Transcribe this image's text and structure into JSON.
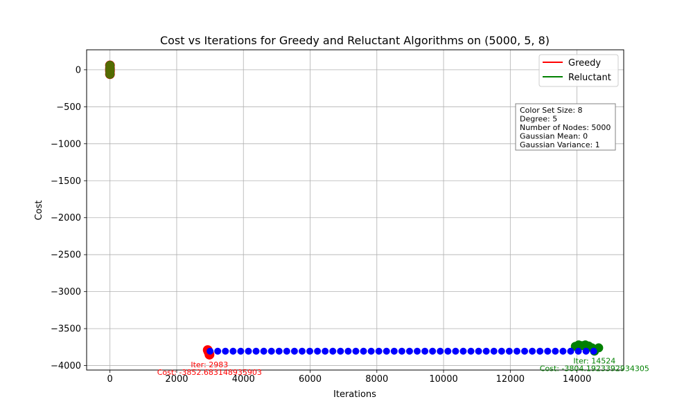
{
  "chart_data": {
    "type": "scatter",
    "title": "Cost vs Iterations for Greedy and Reluctant Algorithms on (5000, 5, 8)",
    "xlabel": "Iterations",
    "ylabel": "Cost",
    "xlim": [
      -700,
      15400
    ],
    "ylim": [
      -4060,
      270
    ],
    "grid": true,
    "x_ticks": [
      0,
      2000,
      4000,
      6000,
      8000,
      10000,
      12000,
      14000
    ],
    "x_tick_labels": [
      "0",
      "2000",
      "4000",
      "6000",
      "8000",
      "10000",
      "12000",
      "14000"
    ],
    "y_ticks": [
      0,
      -500,
      -1000,
      -1500,
      -2000,
      -2500,
      -3000,
      -3500,
      -4000
    ],
    "y_tick_labels": [
      "0",
      "−500",
      "−1000",
      "−1500",
      "−2000",
      "−2500",
      "−3000",
      "−3500",
      "−4000"
    ],
    "legend": {
      "placement": "top-right",
      "entries": [
        {
          "name": "Greedy",
          "color": "#ff0000"
        },
        {
          "name": "Reluctant",
          "color": "#008000"
        }
      ]
    },
    "info_box": [
      "Color Set Size: 8",
      "Degree: 5",
      "Number of Nodes: 5000",
      "Gaussian Mean: 0",
      "Gaussian Variance: 1"
    ],
    "series": [
      {
        "name": "Greedy",
        "color": "#ff0000",
        "marker": "circle",
        "x": [
          0,
          0,
          0,
          0,
          0,
          2930,
          2950,
          2970,
          2983
        ],
        "y": [
          60,
          20,
          -20,
          -60,
          0,
          -3790,
          -3810,
          -3830,
          -3852.683148935903
        ]
      },
      {
        "name": "Reluctant",
        "color": "#008000",
        "marker": "circle",
        "x": [
          0,
          0,
          0,
          0,
          0,
          13950,
          14050,
          14150,
          14250,
          14350,
          14450,
          14524,
          14650
        ],
        "y": [
          60,
          20,
          -20,
          -60,
          0,
          -3740,
          -3720,
          -3730,
          -3720,
          -3735,
          -3760,
          -3804.1923392934305,
          -3760
        ]
      },
      {
        "name": "",
        "color": "#0000ff",
        "marker": "circle",
        "x_start": 3000,
        "x_end": 14500,
        "x_step": 230,
        "y_value": -3805
      }
    ],
    "overlap_color": "#556b00",
    "annotations": [
      {
        "lines": [
          "Iter: 2983",
          "Cost: -3852.683148935903"
        ],
        "color": "#ff0000",
        "x": 2983,
        "y": -3852.683148935903
      },
      {
        "lines": [
          "Iter: 14524",
          "Cost: -3804.1923392934305"
        ],
        "color": "#008000",
        "x": 14524,
        "y": -3804.1923392934305
      }
    ]
  }
}
